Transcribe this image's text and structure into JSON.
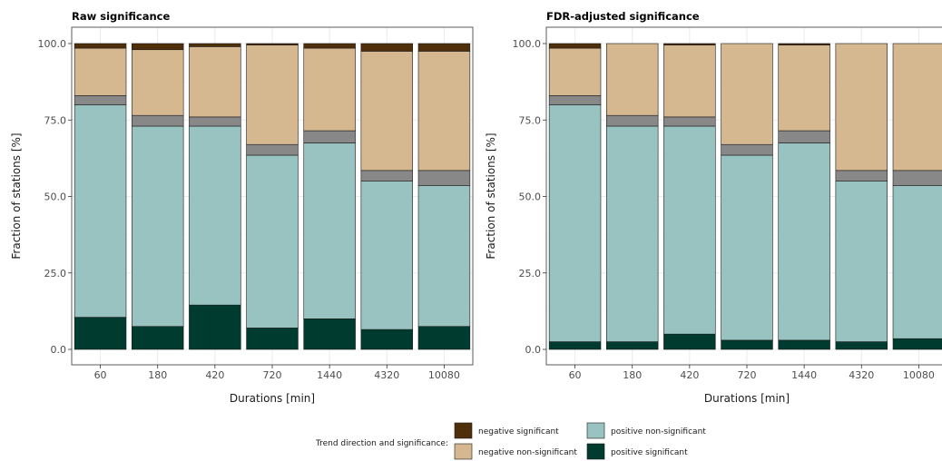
{
  "chart_data": [
    {
      "type": "bar",
      "stacked": true,
      "title": "Raw significance",
      "xlabel": "Durations [min]",
      "ylabel": "Fraction of stations [%]",
      "ylim": [
        0,
        100
      ],
      "yticks": [
        "0.0",
        "25.0",
        "50.0",
        "75.0",
        "100.0"
      ],
      "grid": true,
      "categories": [
        "60",
        "180",
        "420",
        "720",
        "1440",
        "4320",
        "10080"
      ],
      "series": [
        {
          "name": "positive significant",
          "color": "#003b2f",
          "values": [
            10.5,
            7.5,
            14.5,
            7.0,
            10.0,
            6.5,
            7.5
          ]
        },
        {
          "name": "positive non-significant",
          "color": "#98c3c0",
          "values": [
            69.5,
            65.5,
            58.5,
            56.5,
            57.5,
            48.5,
            46.0
          ]
        },
        {
          "name": "grey",
          "color": "#888888",
          "values": [
            3.0,
            3.5,
            3.0,
            3.5,
            4.0,
            3.5,
            5.0
          ]
        },
        {
          "name": "negative non-significant",
          "color": "#d6b890",
          "values": [
            15.5,
            21.5,
            23.0,
            32.5,
            27.0,
            39.0,
            39.0
          ]
        },
        {
          "name": "negative significant",
          "color": "#4f2e0a",
          "values": [
            1.5,
            2.0,
            1.0,
            0.5,
            1.5,
            2.5,
            2.5
          ]
        }
      ]
    },
    {
      "type": "bar",
      "stacked": true,
      "title": "FDR-adjusted significance",
      "xlabel": "Durations [min]",
      "ylabel": "Fraction of stations [%]",
      "ylim": [
        0,
        100
      ],
      "yticks": [
        "0.0",
        "25.0",
        "50.0",
        "75.0",
        "100.0"
      ],
      "grid": true,
      "categories": [
        "60",
        "180",
        "420",
        "720",
        "1440",
        "4320",
        "10080"
      ],
      "series": [
        {
          "name": "positive significant",
          "color": "#003b2f",
          "values": [
            2.5,
            2.5,
            5.0,
            3.0,
            3.0,
            2.5,
            3.5
          ]
        },
        {
          "name": "positive non-significant",
          "color": "#98c3c0",
          "values": [
            77.5,
            70.5,
            68.0,
            60.5,
            64.5,
            52.5,
            50.0
          ]
        },
        {
          "name": "grey",
          "color": "#888888",
          "values": [
            3.0,
            3.5,
            3.0,
            3.5,
            4.0,
            3.5,
            5.0
          ]
        },
        {
          "name": "negative non-significant",
          "color": "#d6b890",
          "values": [
            15.5,
            23.5,
            23.5,
            33.0,
            28.0,
            41.5,
            41.5
          ]
        },
        {
          "name": "negative significant",
          "color": "#4f2e0a",
          "values": [
            1.5,
            0.0,
            0.5,
            0.0,
            0.5,
            0.0,
            0.0
          ]
        }
      ]
    }
  ],
  "legend": {
    "title": "Trend direction and significance:",
    "position": "bottom",
    "items": [
      {
        "label": "negative significant",
        "color": "#4f2e0a"
      },
      {
        "label": "negative non-significant",
        "color": "#d6b890"
      },
      {
        "label": "positive non-significant",
        "color": "#98c3c0"
      },
      {
        "label": "positive significant",
        "color": "#003b2f"
      }
    ]
  }
}
